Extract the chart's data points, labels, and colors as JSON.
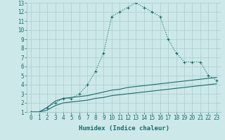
{
  "xlabel": "Humidex (Indice chaleur)",
  "bg_color": "#cce8e8",
  "grid_color": "#aacccc",
  "line_color": "#1a6b6b",
  "xlim": [
    -0.5,
    23.5
  ],
  "ylim": [
    1,
    13
  ],
  "yticks": [
    1,
    2,
    3,
    4,
    5,
    6,
    7,
    8,
    9,
    10,
    11,
    12,
    13
  ],
  "xticks": [
    0,
    1,
    2,
    3,
    4,
    5,
    6,
    7,
    8,
    9,
    10,
    11,
    12,
    13,
    14,
    15,
    16,
    17,
    18,
    19,
    20,
    21,
    22,
    23
  ],
  "line1_x": [
    0,
    1,
    2,
    3,
    4,
    5,
    6,
    7,
    8,
    9,
    10,
    11,
    12,
    13,
    14,
    15,
    16,
    17,
    18,
    19,
    20,
    21,
    22,
    23
  ],
  "line1_y": [
    1.0,
    1.0,
    1.5,
    2.0,
    2.5,
    2.5,
    3.0,
    4.0,
    5.5,
    7.5,
    11.5,
    12.0,
    12.5,
    13.0,
    12.5,
    12.0,
    11.5,
    9.0,
    7.5,
    6.5,
    6.5,
    6.5,
    5.0,
    4.5
  ],
  "line2_x": [
    0,
    1,
    2,
    3,
    4,
    5,
    6,
    7,
    8,
    9,
    10,
    11,
    12,
    13,
    14,
    15,
    16,
    17,
    18,
    19,
    20,
    21,
    22,
    23
  ],
  "line2_y": [
    1.0,
    1.0,
    1.5,
    2.2,
    2.5,
    2.6,
    2.7,
    2.8,
    3.0,
    3.2,
    3.4,
    3.5,
    3.7,
    3.8,
    3.9,
    4.0,
    4.1,
    4.2,
    4.3,
    4.4,
    4.5,
    4.6,
    4.7,
    4.8
  ],
  "line3_x": [
    0,
    1,
    2,
    3,
    4,
    5,
    6,
    7,
    8,
    9,
    10,
    11,
    12,
    13,
    14,
    15,
    16,
    17,
    18,
    19,
    20,
    21,
    22,
    23
  ],
  "line3_y": [
    1.0,
    1.0,
    1.2,
    1.7,
    2.0,
    2.1,
    2.2,
    2.3,
    2.5,
    2.6,
    2.8,
    2.9,
    3.0,
    3.1,
    3.2,
    3.3,
    3.4,
    3.5,
    3.6,
    3.7,
    3.8,
    3.9,
    4.0,
    4.1
  ]
}
